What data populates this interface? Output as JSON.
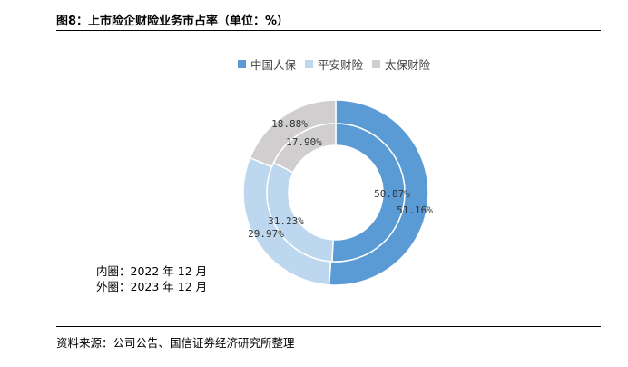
{
  "figure": {
    "title": "图8：上市险企财险业务市占率（单位：%）",
    "note_inner": "内圈：2022 年 12 月",
    "note_outer": "外圈：2023 年 12 月",
    "source": "资料来源：公司公告、国信证券经济研究所整理"
  },
  "legend": [
    {
      "name": "中国人保",
      "color": "#5b9bd5"
    },
    {
      "name": "平安财险",
      "color": "#bdd7ee"
    },
    {
      "name": "太保财险",
      "color": "#d0cece"
    }
  ],
  "chart_data": {
    "type": "pie",
    "title": "图8：上市险企财险业务市占率（单位：%）",
    "categories": [
      "中国人保",
      "平安财险",
      "太保财险"
    ],
    "series": [
      {
        "name": "内圈：2022 年 12 月",
        "ring": "inner",
        "values": [
          50.87,
          31.23,
          17.9
        ],
        "labels": [
          "50.87%",
          "31.23%",
          "17.90%"
        ]
      },
      {
        "name": "外圈：2023 年 12 月",
        "ring": "outer",
        "values": [
          51.16,
          29.97,
          18.88
        ],
        "labels": [
          "51.16%",
          "29.97%",
          "18.88%"
        ]
      }
    ],
    "colors": [
      "#5b9bd5",
      "#bdd7ee",
      "#d0cece"
    ],
    "legend_position": "top"
  }
}
